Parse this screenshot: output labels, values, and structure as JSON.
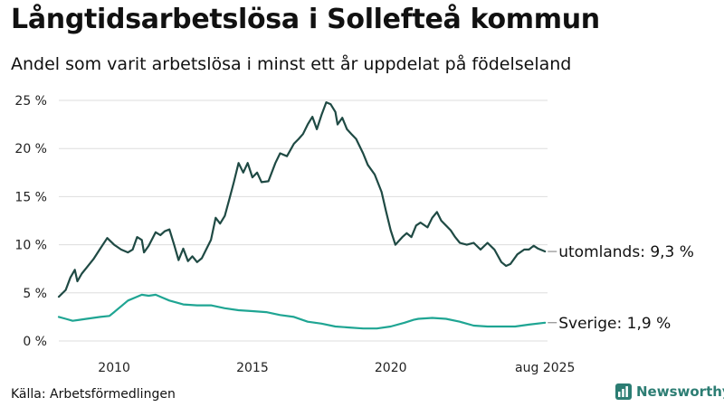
{
  "header": {
    "title": "Långtidsarbetslösa i Sollefteå kommun",
    "subtitle": "Andel som varit arbetslösa i minst ett år uppdelat på födelseland"
  },
  "footer": {
    "source": "Källa: Arbetsförmedlingen",
    "brand": "Newsworthy"
  },
  "colors": {
    "utomlands": "#1f4a44",
    "sverige": "#1fa593",
    "grid": "#dddddd",
    "brand": "#2c7d73"
  },
  "chart_data": {
    "type": "line",
    "x_unit": "year",
    "xlim": [
      2008.0,
      2025.67
    ],
    "ylim": [
      0,
      25
    ],
    "y_ticks": [
      0,
      5,
      10,
      15,
      20,
      25
    ],
    "y_tick_labels": [
      "0 %",
      "5 %",
      "10 %",
      "15 %",
      "20 %",
      "25 %"
    ],
    "x_ticks": [
      2010,
      2015,
      2020,
      2025.58
    ],
    "x_tick_labels": [
      "2010",
      "2015",
      "2020",
      "aug 2025"
    ],
    "grid": true,
    "legend": "end-labels",
    "series": [
      {
        "name": "utomlands",
        "end_label": "utomlands: 9,3 %",
        "points": [
          [
            2008.0,
            4.6
          ],
          [
            2008.25,
            5.3
          ],
          [
            2008.42,
            6.6
          ],
          [
            2008.58,
            7.4
          ],
          [
            2008.67,
            6.2
          ],
          [
            2008.83,
            7.0
          ],
          [
            2009.0,
            7.6
          ],
          [
            2009.25,
            8.5
          ],
          [
            2009.5,
            9.6
          ],
          [
            2009.75,
            10.7
          ],
          [
            2010.0,
            10.0
          ],
          [
            2010.25,
            9.5
          ],
          [
            2010.5,
            9.2
          ],
          [
            2010.67,
            9.5
          ],
          [
            2010.83,
            10.8
          ],
          [
            2011.0,
            10.5
          ],
          [
            2011.08,
            9.2
          ],
          [
            2011.25,
            9.9
          ],
          [
            2011.5,
            11.3
          ],
          [
            2011.67,
            11.0
          ],
          [
            2011.83,
            11.4
          ],
          [
            2012.0,
            11.6
          ],
          [
            2012.17,
            10.0
          ],
          [
            2012.33,
            8.4
          ],
          [
            2012.5,
            9.6
          ],
          [
            2012.67,
            8.3
          ],
          [
            2012.83,
            8.8
          ],
          [
            2013.0,
            8.2
          ],
          [
            2013.17,
            8.6
          ],
          [
            2013.5,
            10.5
          ],
          [
            2013.67,
            12.8
          ],
          [
            2013.83,
            12.2
          ],
          [
            2014.0,
            13.0
          ],
          [
            2014.17,
            14.8
          ],
          [
            2014.33,
            16.5
          ],
          [
            2014.5,
            18.5
          ],
          [
            2014.67,
            17.5
          ],
          [
            2014.83,
            18.5
          ],
          [
            2015.0,
            17.0
          ],
          [
            2015.17,
            17.5
          ],
          [
            2015.33,
            16.5
          ],
          [
            2015.58,
            16.6
          ],
          [
            2015.83,
            18.5
          ],
          [
            2016.0,
            19.5
          ],
          [
            2016.25,
            19.2
          ],
          [
            2016.5,
            20.5
          ],
          [
            2016.67,
            21.0
          ],
          [
            2016.83,
            21.5
          ],
          [
            2017.0,
            22.5
          ],
          [
            2017.17,
            23.3
          ],
          [
            2017.33,
            22.0
          ],
          [
            2017.5,
            23.5
          ],
          [
            2017.67,
            24.8
          ],
          [
            2017.83,
            24.6
          ],
          [
            2018.0,
            23.8
          ],
          [
            2018.08,
            22.5
          ],
          [
            2018.25,
            23.2
          ],
          [
            2018.42,
            22.0
          ],
          [
            2018.58,
            21.5
          ],
          [
            2018.75,
            21.0
          ],
          [
            2019.0,
            19.5
          ],
          [
            2019.17,
            18.3
          ],
          [
            2019.42,
            17.3
          ],
          [
            2019.67,
            15.5
          ],
          [
            2019.83,
            13.5
          ],
          [
            2020.0,
            11.5
          ],
          [
            2020.17,
            10.0
          ],
          [
            2020.42,
            10.8
          ],
          [
            2020.58,
            11.2
          ],
          [
            2020.75,
            10.8
          ],
          [
            2020.92,
            12.0
          ],
          [
            2021.08,
            12.3
          ],
          [
            2021.33,
            11.8
          ],
          [
            2021.5,
            12.8
          ],
          [
            2021.67,
            13.4
          ],
          [
            2021.83,
            12.5
          ],
          [
            2022.0,
            12.0
          ],
          [
            2022.17,
            11.5
          ],
          [
            2022.33,
            10.8
          ],
          [
            2022.5,
            10.2
          ],
          [
            2022.75,
            10.0
          ],
          [
            2023.0,
            10.2
          ],
          [
            2023.25,
            9.5
          ],
          [
            2023.5,
            10.2
          ],
          [
            2023.75,
            9.5
          ],
          [
            2024.0,
            8.2
          ],
          [
            2024.17,
            7.8
          ],
          [
            2024.33,
            8.0
          ],
          [
            2024.58,
            9.0
          ],
          [
            2024.83,
            9.5
          ],
          [
            2025.0,
            9.5
          ],
          [
            2025.17,
            9.9
          ],
          [
            2025.33,
            9.6
          ],
          [
            2025.58,
            9.3
          ]
        ]
      },
      {
        "name": "Sverige",
        "end_label": "Sverige: 1,9 %",
        "points": [
          [
            2008.0,
            2.5
          ],
          [
            2008.25,
            2.3
          ],
          [
            2008.5,
            2.1
          ],
          [
            2008.75,
            2.2
          ],
          [
            2009.0,
            2.3
          ],
          [
            2009.5,
            2.5
          ],
          [
            2009.83,
            2.6
          ],
          [
            2010.0,
            3.0
          ],
          [
            2010.25,
            3.6
          ],
          [
            2010.5,
            4.2
          ],
          [
            2010.75,
            4.5
          ],
          [
            2011.0,
            4.8
          ],
          [
            2011.25,
            4.7
          ],
          [
            2011.5,
            4.8
          ],
          [
            2011.75,
            4.5
          ],
          [
            2012.0,
            4.2
          ],
          [
            2012.25,
            4.0
          ],
          [
            2012.5,
            3.8
          ],
          [
            2013.0,
            3.7
          ],
          [
            2013.5,
            3.7
          ],
          [
            2014.0,
            3.4
          ],
          [
            2014.5,
            3.2
          ],
          [
            2015.0,
            3.1
          ],
          [
            2015.5,
            3.0
          ],
          [
            2016.0,
            2.7
          ],
          [
            2016.5,
            2.5
          ],
          [
            2017.0,
            2.0
          ],
          [
            2017.5,
            1.8
          ],
          [
            2018.0,
            1.5
          ],
          [
            2018.5,
            1.4
          ],
          [
            2019.0,
            1.3
          ],
          [
            2019.5,
            1.3
          ],
          [
            2020.0,
            1.5
          ],
          [
            2020.5,
            1.9
          ],
          [
            2020.83,
            2.2
          ],
          [
            2021.0,
            2.3
          ],
          [
            2021.5,
            2.4
          ],
          [
            2022.0,
            2.3
          ],
          [
            2022.5,
            2.0
          ],
          [
            2023.0,
            1.6
          ],
          [
            2023.5,
            1.5
          ],
          [
            2024.0,
            1.5
          ],
          [
            2024.5,
            1.5
          ],
          [
            2025.0,
            1.7
          ],
          [
            2025.58,
            1.9
          ]
        ]
      }
    ]
  }
}
